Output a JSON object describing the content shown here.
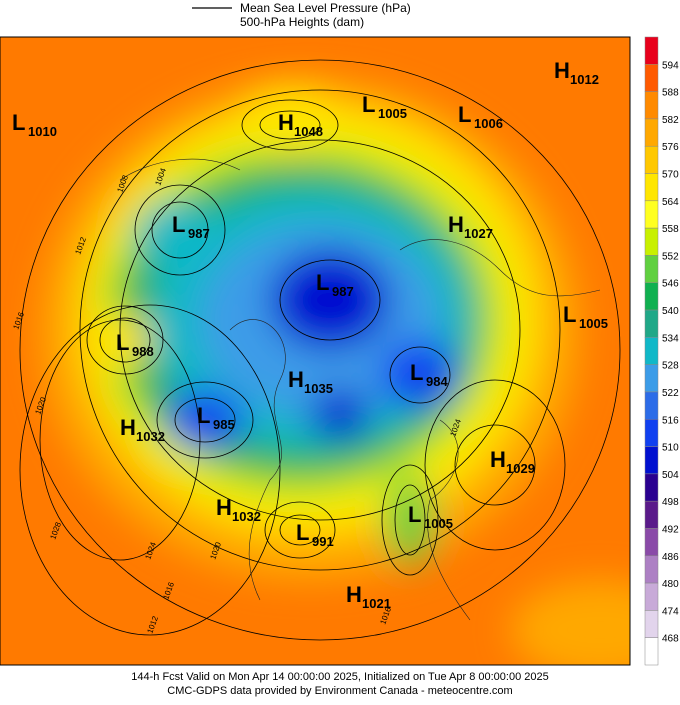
{
  "legend": {
    "items": [
      {
        "label": "Mean Sea Level Pressure (hPa)"
      },
      {
        "label": "500-hPa Heights (dam)"
      }
    ]
  },
  "pressure_centers": [
    {
      "letter": "L",
      "value": "1010"
    },
    {
      "letter": "L",
      "value": "987"
    },
    {
      "letter": "L",
      "value": "988"
    },
    {
      "letter": "L",
      "value": "985"
    },
    {
      "letter": "H",
      "value": "1032"
    },
    {
      "letter": "H",
      "value": "1048"
    },
    {
      "letter": "L",
      "value": "1005"
    },
    {
      "letter": "L",
      "value": "1006"
    },
    {
      "letter": "H",
      "value": "1012"
    },
    {
      "letter": "H",
      "value": "1027"
    },
    {
      "letter": "L",
      "value": "1005"
    },
    {
      "letter": "L",
      "value": "987"
    },
    {
      "letter": "L",
      "value": "984"
    },
    {
      "letter": "H",
      "value": "1035"
    },
    {
      "letter": "H",
      "value": "1029"
    },
    {
      "letter": "H",
      "value": "1032"
    },
    {
      "letter": "L",
      "value": "991"
    },
    {
      "letter": "L",
      "value": "1005"
    },
    {
      "letter": "H",
      "value": "1021"
    }
  ],
  "contour_labels": [
    "1008",
    "1004",
    "1012",
    "1016",
    "1020",
    "1024",
    "1028",
    "1016",
    "1020",
    "1012",
    "1016",
    "1024"
  ],
  "colorbar": {
    "labels": [
      "594",
      "588",
      "582",
      "576",
      "570",
      "564",
      "558",
      "552",
      "546",
      "540",
      "534",
      "528",
      "522",
      "516",
      "510",
      "504",
      "498",
      "492",
      "486",
      "480",
      "474",
      "468"
    ],
    "colors": [
      "#e8001c",
      "#ff5a00",
      "#ff8a00",
      "#ffa800",
      "#ffc800",
      "#ffe600",
      "#ffff20",
      "#c8f000",
      "#60d040",
      "#10b050",
      "#20a888",
      "#10b8c8",
      "#3c9ce8",
      "#2c6ce8",
      "#1040f0",
      "#0010d0",
      "#2a0090",
      "#5a1a8a",
      "#8a4aa8",
      "#ad80c4",
      "#c8aad8",
      "#e2d4ec",
      "#ffffff"
    ]
  },
  "footer": {
    "line1": "144-h Fcst Valid on Mon Apr 14 00:00:00 2025, Initialized on Tue Apr  8 00:00:00 2025",
    "line2": "CMC-GDPS data provided by Environment Canada - meteocentre.com"
  }
}
